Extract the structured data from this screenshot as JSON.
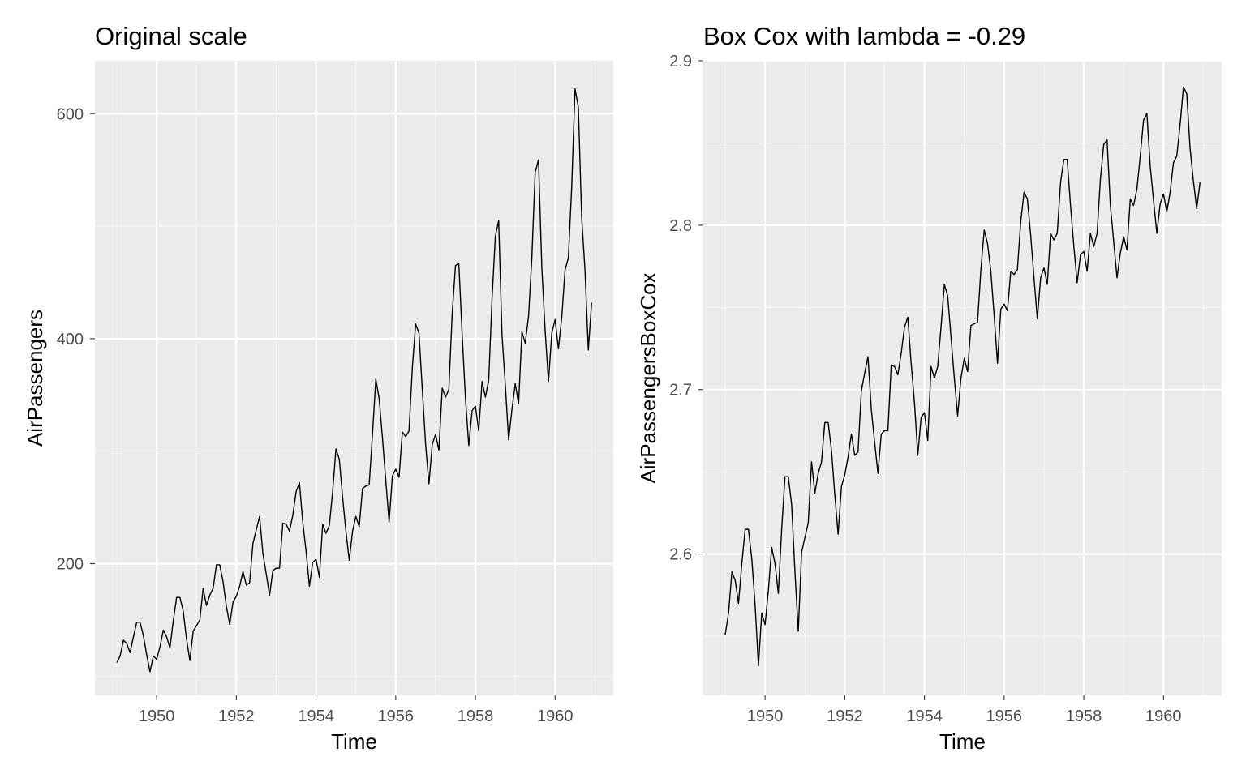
{
  "colors": {
    "panel_background": "#ebebeb",
    "grid_major": "#ffffff",
    "grid_minor": "#f5f5f5",
    "line": "#000000",
    "tick_text": "#4d4d4d",
    "axis_title": "#000000"
  },
  "chart_data": [
    {
      "type": "line",
      "title": "Original scale",
      "xlabel": "Time",
      "ylabel": "AirPassengers",
      "xlim": [
        1948.45,
        1961.46
      ],
      "ylim": [
        83,
        647
      ],
      "x_ticks": [
        1950,
        1952,
        1954,
        1956,
        1958,
        1960
      ],
      "x_tick_labels": [
        "1950",
        "1952",
        "1954",
        "1956",
        "1958",
        "1960"
      ],
      "y_ticks": [
        200,
        400,
        600
      ],
      "y_tick_labels": [
        "200",
        "400",
        "600"
      ],
      "grid": true,
      "x_start": 1949,
      "x_step": 0.0833333,
      "values": [
        112,
        118,
        132,
        129,
        121,
        135,
        148,
        148,
        136,
        119,
        104,
        118,
        115,
        126,
        141,
        135,
        125,
        149,
        170,
        170,
        158,
        133,
        114,
        140,
        145,
        150,
        178,
        163,
        172,
        178,
        199,
        199,
        184,
        162,
        146,
        166,
        171,
        180,
        193,
        181,
        183,
        218,
        230,
        242,
        209,
        191,
        172,
        194,
        196,
        196,
        236,
        235,
        229,
        243,
        264,
        272,
        237,
        211,
        180,
        201,
        204,
        188,
        235,
        227,
        234,
        264,
        302,
        293,
        259,
        229,
        203,
        229,
        242,
        233,
        267,
        269,
        270,
        315,
        364,
        347,
        312,
        274,
        237,
        278,
        284,
        277,
        317,
        313,
        318,
        374,
        413,
        405,
        355,
        306,
        271,
        306,
        315,
        301,
        356,
        348,
        355,
        422,
        465,
        467,
        404,
        347,
        305,
        336,
        340,
        318,
        362,
        348,
        363,
        435,
        491,
        505,
        404,
        359,
        310,
        337,
        360,
        342,
        406,
        396,
        420,
        472,
        548,
        559,
        463,
        407,
        362,
        405,
        417,
        391,
        419,
        461,
        472,
        535,
        622,
        606,
        508,
        461,
        390,
        432
      ]
    },
    {
      "type": "line",
      "title": "Box Cox with lambda = -0.29",
      "xlabel": "Time",
      "ylabel": "AirPassengersBoxCox",
      "xlim": [
        1948.45,
        1961.46
      ],
      "ylim": [
        2.514,
        2.9
      ],
      "x_ticks": [
        1950,
        1952,
        1954,
        1956,
        1958,
        1960
      ],
      "x_tick_labels": [
        "1950",
        "1952",
        "1954",
        "1956",
        "1958",
        "1960"
      ],
      "y_ticks": [
        2.6,
        2.7,
        2.8,
        2.9
      ],
      "y_tick_labels": [
        "2.6",
        "2.7",
        "2.8",
        "2.9"
      ],
      "grid": true,
      "x_start": 1949,
      "x_step": 0.0833333,
      "lambda": -0.29,
      "values": [
        2.551,
        2.564,
        2.589,
        2.584,
        2.57,
        2.594,
        2.615,
        2.615,
        2.597,
        2.569,
        2.532,
        2.564,
        2.557,
        2.578,
        2.604,
        2.594,
        2.576,
        2.615,
        2.647,
        2.647,
        2.63,
        2.589,
        2.553,
        2.601,
        2.61,
        2.619,
        2.656,
        2.637,
        2.649,
        2.656,
        2.68,
        2.68,
        2.663,
        2.636,
        2.612,
        2.641,
        2.648,
        2.659,
        2.673,
        2.66,
        2.662,
        2.699,
        2.71,
        2.72,
        2.688,
        2.668,
        2.649,
        2.673,
        2.675,
        2.675,
        2.715,
        2.714,
        2.709,
        2.722,
        2.738,
        2.744,
        2.716,
        2.692,
        2.66,
        2.683,
        2.686,
        2.669,
        2.714,
        2.707,
        2.714,
        2.738,
        2.764,
        2.757,
        2.732,
        2.707,
        2.684,
        2.707,
        2.719,
        2.711,
        2.739,
        2.74,
        2.741,
        2.773,
        2.797,
        2.789,
        2.772,
        2.745,
        2.716,
        2.749,
        2.752,
        2.748,
        2.772,
        2.77,
        2.773,
        2.802,
        2.82,
        2.816,
        2.794,
        2.768,
        2.743,
        2.768,
        2.774,
        2.764,
        2.795,
        2.791,
        2.795,
        2.826,
        2.84,
        2.84,
        2.812,
        2.787,
        2.765,
        2.782,
        2.784,
        2.772,
        2.795,
        2.787,
        2.795,
        2.828,
        2.849,
        2.852,
        2.812,
        2.79,
        2.768,
        2.783,
        2.793,
        2.785,
        2.816,
        2.812,
        2.822,
        2.842,
        2.864,
        2.868,
        2.836,
        2.815,
        2.795,
        2.813,
        2.819,
        2.808,
        2.82,
        2.838,
        2.842,
        2.861,
        2.884,
        2.88,
        2.847,
        2.827,
        2.81,
        2.826
      ]
    }
  ]
}
